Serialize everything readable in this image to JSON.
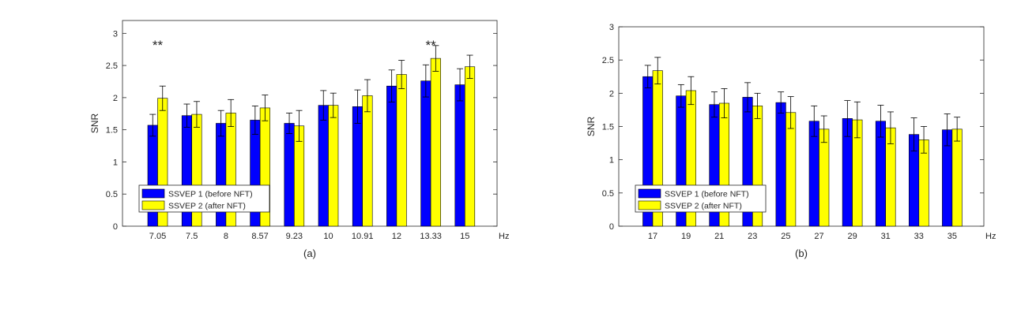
{
  "colors": {
    "series1": "#0000ff",
    "series2": "#ffff00",
    "axis": "#262626",
    "errorbar": "#000000"
  },
  "chart_data": [
    {
      "type": "bar",
      "panel_label": "(a)",
      "xlabel": "Hz",
      "ylabel": "SNR",
      "ylim": [
        0,
        3.2
      ],
      "yticks": [
        0,
        0.5,
        1,
        1.5,
        2,
        2.5,
        3
      ],
      "categories": [
        "7.05",
        "7.5",
        "8",
        "8.57",
        "9.23",
        "10",
        "10.91",
        "12",
        "13.33",
        "15"
      ],
      "series": [
        {
          "name": "SSVEP 1 (before NFT)",
          "values": [
            1.57,
            1.72,
            1.6,
            1.65,
            1.6,
            1.88,
            1.86,
            2.18,
            2.26,
            2.2
          ],
          "errors": [
            0.17,
            0.18,
            0.2,
            0.22,
            0.16,
            0.23,
            0.26,
            0.25,
            0.25,
            0.25
          ]
        },
        {
          "name": "SSVEP 2 (after NFT)",
          "values": [
            1.99,
            1.74,
            1.76,
            1.84,
            1.56,
            1.88,
            2.03,
            2.36,
            2.61,
            2.48
          ],
          "errors": [
            0.19,
            0.2,
            0.21,
            0.2,
            0.24,
            0.19,
            0.25,
            0.22,
            0.2,
            0.18
          ]
        }
      ],
      "annotations": [
        {
          "category": "7.05",
          "text": "**"
        },
        {
          "category": "13.33",
          "text": "**"
        }
      ],
      "legend": "bottom-left",
      "grid": false
    },
    {
      "type": "bar",
      "panel_label": "(b)",
      "xlabel": "Hz",
      "ylabel": "SNR",
      "ylim": [
        0,
        3
      ],
      "yticks": [
        0,
        0.5,
        1,
        1.5,
        2,
        2.5,
        3
      ],
      "categories": [
        "17",
        "19",
        "21",
        "23",
        "25",
        "27",
        "29",
        "31",
        "33",
        "35"
      ],
      "series": [
        {
          "name": "SSVEP 1 (before NFT)",
          "values": [
            2.25,
            1.96,
            1.83,
            1.94,
            1.86,
            1.58,
            1.62,
            1.58,
            1.38,
            1.45
          ],
          "errors": [
            0.17,
            0.17,
            0.19,
            0.22,
            0.16,
            0.23,
            0.27,
            0.24,
            0.25,
            0.24
          ]
        },
        {
          "name": "SSVEP 2 (after NFT)",
          "values": [
            2.34,
            2.04,
            1.85,
            1.81,
            1.71,
            1.46,
            1.6,
            1.48,
            1.3,
            1.46
          ],
          "errors": [
            0.2,
            0.21,
            0.22,
            0.19,
            0.24,
            0.2,
            0.27,
            0.24,
            0.2,
            0.18
          ]
        }
      ],
      "annotations": [],
      "legend": "bottom-left",
      "grid": false
    }
  ]
}
